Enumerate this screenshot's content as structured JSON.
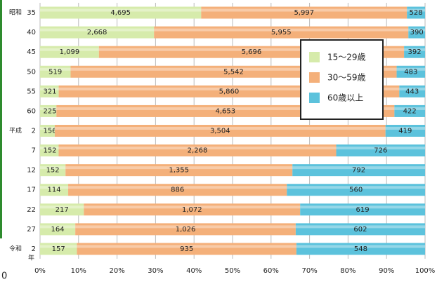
{
  "chart_data": {
    "type": "stacked_bar_100",
    "categories": [
      "35",
      "40",
      "45",
      "50",
      "55",
      "60",
      "2",
      "7",
      "12",
      "17",
      "22",
      "27",
      "2"
    ],
    "era_labels": [
      "昭和",
      null,
      null,
      null,
      null,
      null,
      "平成",
      null,
      null,
      null,
      null,
      null,
      "令和"
    ],
    "year_suffix": "年",
    "series": [
      {
        "name": "15〜29歳",
        "color": "#d6ebab",
        "values": [
          4695,
          2668,
          1099,
          519,
          321,
          225,
          156,
          152,
          152,
          114,
          217,
          164,
          157
        ],
        "value_labels": [
          "4,695",
          "2,668",
          "1,099",
          "519",
          "321",
          "225",
          "156",
          "152",
          "152",
          "114",
          "217",
          "164",
          "157"
        ]
      },
      {
        "name": "30〜59歳",
        "color": "#f4b07a",
        "values": [
          5997,
          5955,
          5696,
          5542,
          5860,
          4653,
          3504,
          2268,
          1355,
          886,
          1072,
          1026,
          935
        ],
        "value_labels": [
          "5,997",
          "5,955",
          "5,696",
          "5,542",
          "5,860",
          "4,653",
          "3,504",
          "2,268",
          "1,355",
          "886",
          "1,072",
          "1,026",
          "935"
        ]
      },
      {
        "name": "60歳以上",
        "color": "#5cc2dc",
        "values": [
          528,
          390,
          392,
          483,
          443,
          422,
          419,
          726,
          792,
          560,
          619,
          602,
          548
        ],
        "value_labels": [
          "528",
          "390",
          "392",
          "483",
          "443",
          "422",
          "419",
          "726",
          "792",
          "560",
          "619",
          "602",
          "548"
        ]
      }
    ],
    "xlim": [
      0,
      100
    ],
    "xticks": [
      {
        "value": 0,
        "label": "0%"
      },
      {
        "value": 10,
        "label": "10%"
      },
      {
        "value": 20,
        "label": "20%"
      },
      {
        "value": 30,
        "label": "30%"
      },
      {
        "value": 40,
        "label": "40%"
      },
      {
        "value": 50,
        "label": "50%"
      },
      {
        "value": 60,
        "label": "60%"
      },
      {
        "value": 70,
        "label": "70%"
      },
      {
        "value": 80,
        "label": "80%"
      },
      {
        "value": 90,
        "label": "90%"
      },
      {
        "value": 100,
        "label": "100%"
      }
    ],
    "grid": true,
    "legend_position": "upper right",
    "fragment_label": "0"
  }
}
